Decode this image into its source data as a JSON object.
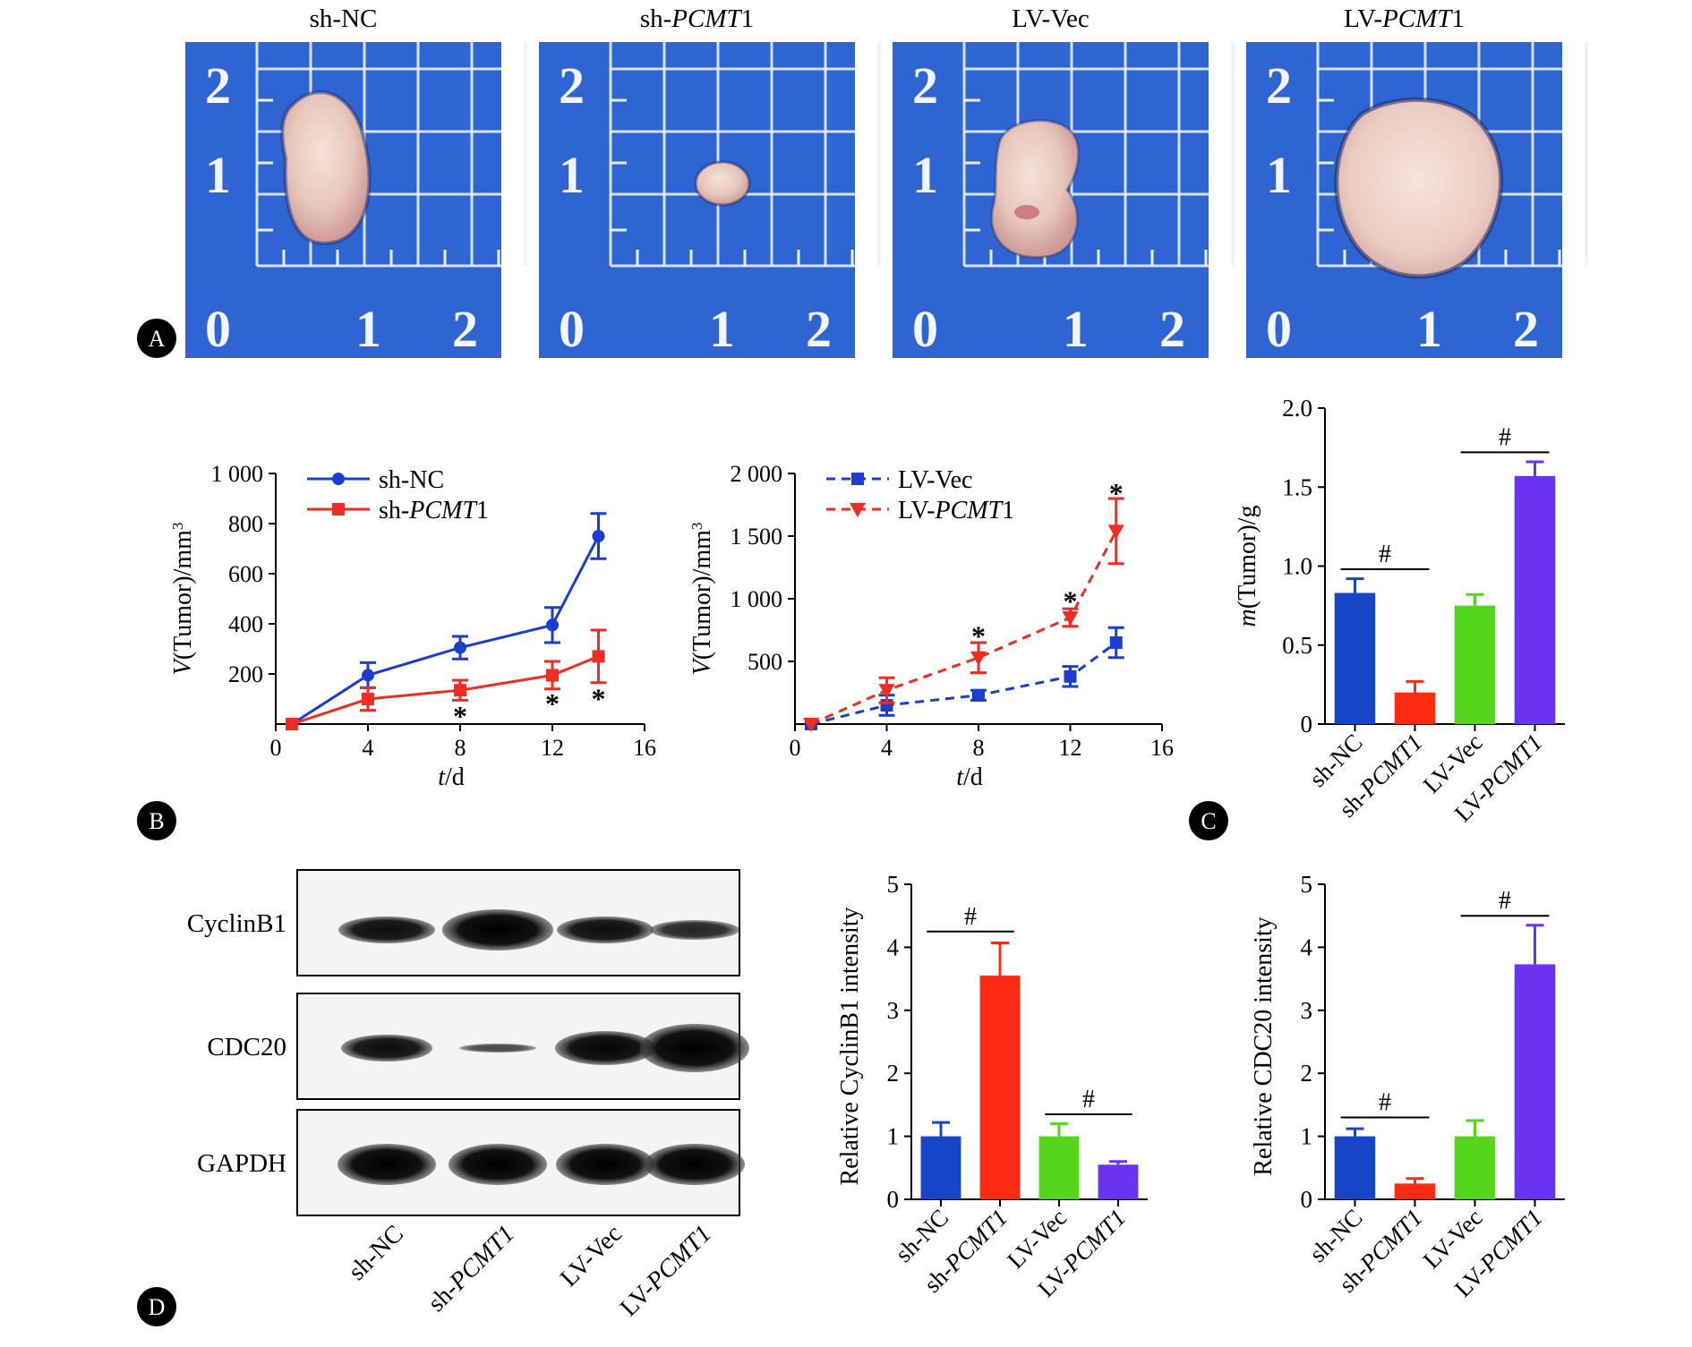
{
  "colors": {
    "blue": "#1745c8",
    "red": "#ff2a12",
    "green": "#55d51c",
    "purple": "#6a33f0",
    "line_blue": "#1a3fd0",
    "line_red": "#ee2e22",
    "photo_bg": "#2f64d3"
  },
  "panels": {
    "A": "A",
    "B": "B",
    "C": "C",
    "D": "D"
  },
  "photos": {
    "labels": [
      {
        "pre": "sh-NC",
        "it": "",
        "post": ""
      },
      {
        "pre": "sh-",
        "it": "PCMT",
        "post": "1"
      },
      {
        "pre": "LV-Vec",
        "it": "",
        "post": ""
      },
      {
        "pre": "LV-",
        "it": "PCMT",
        "post": "1"
      }
    ],
    "ruler_numbers": [
      "2",
      "1",
      "0",
      "1",
      "2"
    ]
  },
  "blot": {
    "rows": [
      "CyclinB1",
      "CDC20",
      "GAPDH"
    ],
    "lanes": [
      {
        "pre": "sh-NC",
        "it": "",
        "post": ""
      },
      {
        "pre": "sh-",
        "it": "PCMT1",
        "post": ""
      },
      {
        "pre": "LV-Vec",
        "it": "",
        "post": ""
      },
      {
        "pre": "LV-",
        "it": "PCMT1",
        "post": ""
      }
    ]
  },
  "chart_data": [
    {
      "id": "B1",
      "type": "line",
      "xlabel_it": "t",
      "xlabel_rest": "/d",
      "ylabel_it": "V",
      "ylabel_rest": "(Tumor)/mm",
      "ylabel_sup": "3",
      "xlim": [
        0,
        16
      ],
      "ylim": [
        0,
        1000
      ],
      "xticks": [
        0,
        4,
        8,
        12,
        16
      ],
      "yticks": [
        200,
        400,
        600,
        800,
        1000
      ],
      "ytick_labels": [
        "200",
        "400",
        "600",
        "800",
        "1 000"
      ],
      "legend": "top-left",
      "series": [
        {
          "name_pre": "sh-NC",
          "name_it": "",
          "name_post": "",
          "color": "blue",
          "marker": "circle",
          "dashed": false,
          "x": [
            0.7,
            4,
            8,
            12,
            14
          ],
          "y": [
            0,
            195,
            305,
            395,
            750
          ],
          "err": [
            0,
            50,
            45,
            70,
            90
          ]
        },
        {
          "name_pre": "sh-",
          "name_it": "PCMT",
          "name_post": "1",
          "color": "red",
          "marker": "square",
          "dashed": false,
          "x": [
            0.7,
            4,
            8,
            12,
            14
          ],
          "y": [
            0,
            100,
            135,
            195,
            270
          ],
          "err": [
            0,
            45,
            40,
            55,
            105
          ]
        }
      ],
      "stars": [
        {
          "x": 8,
          "y": 35
        },
        {
          "x": 12,
          "y": 85
        },
        {
          "x": 14,
          "y": 105
        }
      ],
      "star_text": "*"
    },
    {
      "id": "B2",
      "type": "line",
      "xlabel_it": "t",
      "xlabel_rest": "/d",
      "ylabel_it": "V",
      "ylabel_rest": "(Tumor)/mm",
      "ylabel_sup": "3",
      "xlim": [
        0,
        16
      ],
      "ylim": [
        0,
        2000
      ],
      "xticks": [
        0,
        4,
        8,
        12,
        16
      ],
      "yticks": [
        500,
        1000,
        1500,
        2000
      ],
      "ytick_labels": [
        "500",
        "1 000",
        "1 500",
        "2 000"
      ],
      "legend": "top-left",
      "series": [
        {
          "name_pre": "LV-Vec",
          "name_it": "",
          "name_post": "",
          "color": "blue",
          "marker": "square",
          "dashed": true,
          "x": [
            0.7,
            4,
            8,
            12,
            14
          ],
          "y": [
            0,
            150,
            230,
            380,
            650
          ],
          "err": [
            0,
            80,
            40,
            80,
            120
          ]
        },
        {
          "name_pre": "LV-",
          "name_it": "PCMT",
          "name_post": "1",
          "color": "red",
          "marker": "triangle-down",
          "dashed": true,
          "x": [
            0.7,
            4,
            8,
            12,
            14
          ],
          "y": [
            0,
            270,
            530,
            850,
            1540
          ],
          "err": [
            0,
            100,
            120,
            70,
            260
          ]
        }
      ],
      "stars": [
        {
          "x": 8,
          "y": 710
        },
        {
          "x": 12,
          "y": 990
        },
        {
          "x": 14,
          "y": 1850
        }
      ],
      "star_text": "*"
    },
    {
      "id": "C",
      "type": "bar",
      "ylabel_it": "m",
      "ylabel_rest": "(Tumor)/g",
      "categories": [
        {
          "pre": "sh-NC",
          "it": "",
          "post": ""
        },
        {
          "pre": "sh-",
          "it": "PCMT1",
          "post": ""
        },
        {
          "pre": "LV-Vec",
          "it": "",
          "post": ""
        },
        {
          "pre": "LV-",
          "it": "PCMT1",
          "post": ""
        }
      ],
      "values": [
        0.83,
        0.2,
        0.75,
        1.57
      ],
      "errors": [
        0.09,
        0.07,
        0.07,
        0.09
      ],
      "bar_colors": [
        "blue",
        "red",
        "green",
        "purple"
      ],
      "ylim": [
        0,
        2.0
      ],
      "yticks": [
        0,
        0.5,
        1.0,
        1.5,
        2.0
      ],
      "ytick_labels": [
        "0",
        "0.5",
        "1.0",
        "1.5",
        "2.0"
      ],
      "sig": [
        {
          "from": 0,
          "to": 1,
          "y": 0.98,
          "label": "#"
        },
        {
          "from": 2,
          "to": 3,
          "y": 1.72,
          "label": "#"
        }
      ]
    },
    {
      "id": "D1",
      "type": "bar",
      "ylabel": "Relative CyclinB1 intensity",
      "categories": [
        {
          "pre": "sh-NC",
          "it": "",
          "post": ""
        },
        {
          "pre": "sh-",
          "it": "PCMT1",
          "post": ""
        },
        {
          "pre": "LV-Vec",
          "it": "",
          "post": ""
        },
        {
          "pre": "LV-",
          "it": "PCMT1",
          "post": ""
        }
      ],
      "values": [
        1.0,
        3.55,
        1.0,
        0.55
      ],
      "errors": [
        0.22,
        0.52,
        0.2,
        0.05
      ],
      "bar_colors": [
        "blue",
        "red",
        "green",
        "purple"
      ],
      "ylim": [
        0,
        5
      ],
      "yticks": [
        0,
        1,
        2,
        3,
        4,
        5
      ],
      "ytick_labels": [
        "0",
        "1",
        "2",
        "3",
        "4",
        "5"
      ],
      "sig": [
        {
          "from": 0,
          "to": 1,
          "y": 4.25,
          "label": "#"
        },
        {
          "from": 2,
          "to": 3,
          "y": 1.35,
          "label": "#"
        }
      ]
    },
    {
      "id": "D2",
      "type": "bar",
      "ylabel": "Relative CDC20 intensity",
      "categories": [
        {
          "pre": "sh-NC",
          "it": "",
          "post": ""
        },
        {
          "pre": "sh-",
          "it": "PCMT1",
          "post": ""
        },
        {
          "pre": "LV-Vec",
          "it": "",
          "post": ""
        },
        {
          "pre": "LV-",
          "it": "PCMT1",
          "post": ""
        }
      ],
      "values": [
        1.0,
        0.25,
        1.0,
        3.73
      ],
      "errors": [
        0.12,
        0.08,
        0.25,
        0.62
      ],
      "bar_colors": [
        "blue",
        "red",
        "green",
        "purple"
      ],
      "ylim": [
        0,
        5
      ],
      "yticks": [
        0,
        1,
        2,
        3,
        4,
        5
      ],
      "ytick_labels": [
        "0",
        "1",
        "2",
        "3",
        "4",
        "5"
      ],
      "sig": [
        {
          "from": 0,
          "to": 1,
          "y": 1.3,
          "label": "#"
        },
        {
          "from": 2,
          "to": 3,
          "y": 4.5,
          "label": "#"
        }
      ]
    }
  ]
}
